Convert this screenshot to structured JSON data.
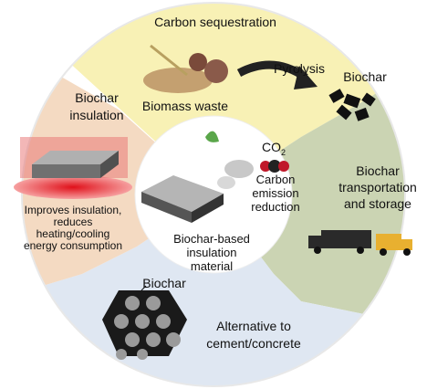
{
  "top": {
    "title": "Carbon sequestration",
    "pyrolysis": "Pyrolysis",
    "biochar": "Biochar",
    "biomass": "Biomass waste"
  },
  "left": {
    "title": [
      "Biochar",
      "insulation"
    ],
    "note": [
      "Improves insulation,",
      "reduces",
      "heating/cooling",
      "energy consumption"
    ]
  },
  "center": {
    "co2": {
      "text": "CO",
      "subscript": "2"
    },
    "reduction": [
      "Carbon",
      "emission",
      "reduction"
    ],
    "material": [
      "Biochar-based",
      "insulation",
      "material"
    ]
  },
  "right": {
    "title": [
      "Biochar",
      "transportation",
      "and storage"
    ]
  },
  "bottom": {
    "biochar": "Biochar",
    "title": [
      "Alternative to",
      "cement/concrete"
    ]
  }
}
